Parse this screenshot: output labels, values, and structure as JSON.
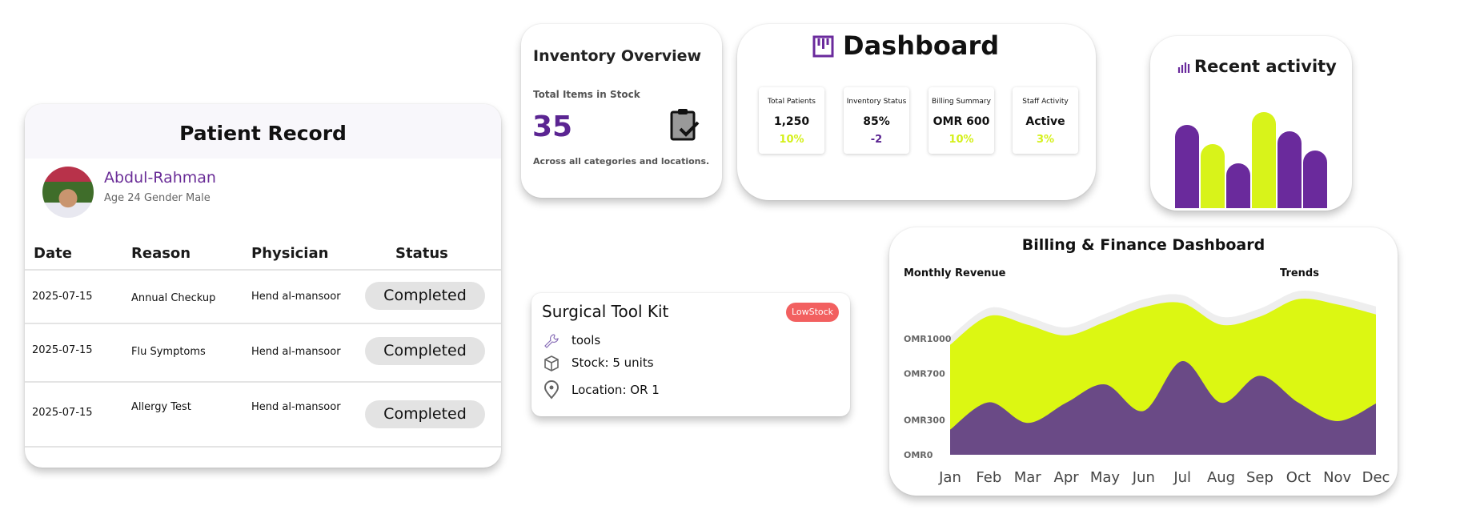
{
  "patient": {
    "title": "Patient Record",
    "name": "Abdul-Rahman",
    "meta": "Age 24 Gender Male",
    "columns": [
      "Date",
      "Reason",
      "Physician",
      "Status"
    ],
    "rows": [
      {
        "date": "2025-07-15",
        "reason": "Annual Checkup",
        "physician": "Hend al-mansoor",
        "status": "Completed"
      },
      {
        "date": "2025-07-15",
        "reason": "Flu Symptoms",
        "physician": "Hend al-mansoor",
        "status": "Completed"
      },
      {
        "date": "2025-07-15",
        "reason": "Allergy Test",
        "physician": "Hend al-mansoor",
        "status": "Completed"
      }
    ]
  },
  "inventory": {
    "title": "Inventory Overview",
    "label": "Total Items in Stock",
    "value": "35",
    "footer": "Across all categories and locations.",
    "icon": "clipboard-check-icon"
  },
  "dashboard": {
    "title": "Dashboard",
    "icon": "kanban-icon",
    "stats": [
      {
        "label": "Total Patients",
        "value": "1,250",
        "delta": "10%",
        "delta_color": "#d4f01a"
      },
      {
        "label": "Inventory Status",
        "value": "85%",
        "delta": "-2",
        "delta_color": "#5b2592"
      },
      {
        "label": "Billing Summary",
        "value": "OMR 600",
        "delta": "10%",
        "delta_color": "#d4f01a"
      },
      {
        "label": "Staff Activity",
        "value": "Active",
        "delta": "3%",
        "delta_color": "#d4f01a"
      }
    ]
  },
  "recent": {
    "title": "Recent activity",
    "icon": "bar-chart-icon",
    "bars": [
      {
        "value": 65,
        "color": "#6a2a9c"
      },
      {
        "value": 50,
        "color": "#d8f31a"
      },
      {
        "value": 35,
        "color": "#6a2a9c"
      },
      {
        "value": 75,
        "color": "#d8f31a"
      },
      {
        "value": 60,
        "color": "#6a2a9c"
      },
      {
        "value": 45,
        "color": "#6a2a9c"
      }
    ]
  },
  "surgical": {
    "title": "Surgical Tool Kit",
    "badge": "LowStock",
    "category": "tools",
    "stock": "Stock: 5 units",
    "location": "Location: OR 1"
  },
  "chart_data": {
    "type": "area",
    "title": "Billing & Finance Dashboard",
    "left_label": "Monthly Revenue",
    "right_label": "Trends",
    "categories": [
      "Jan",
      "Feb",
      "Mar",
      "Apr",
      "May",
      "Jun",
      "Jul",
      "Aug",
      "Sep",
      "Oct",
      "Nov",
      "Dec"
    ],
    "y_ticks": [
      {
        "label": "OMR1000",
        "value": 1000
      },
      {
        "label": "OMR700",
        "value": 700
      },
      {
        "label": "OMR300",
        "value": 300
      },
      {
        "label": "OMR0",
        "value": 0
      }
    ],
    "ylim": [
      0,
      1400
    ],
    "stacked": true,
    "series": [
      {
        "key": "lower",
        "color": "#6a4a86",
        "values": [
          216,
          452,
          274,
          448,
          606,
          378,
          807,
          448,
          680,
          448,
          290,
          441
        ]
      },
      {
        "key": "upper",
        "color": "#dcf712",
        "values": [
          731,
          743,
          846,
          580,
          538,
          893,
          499,
          672,
          510,
          893,
          1005,
          768
        ]
      }
    ]
  }
}
